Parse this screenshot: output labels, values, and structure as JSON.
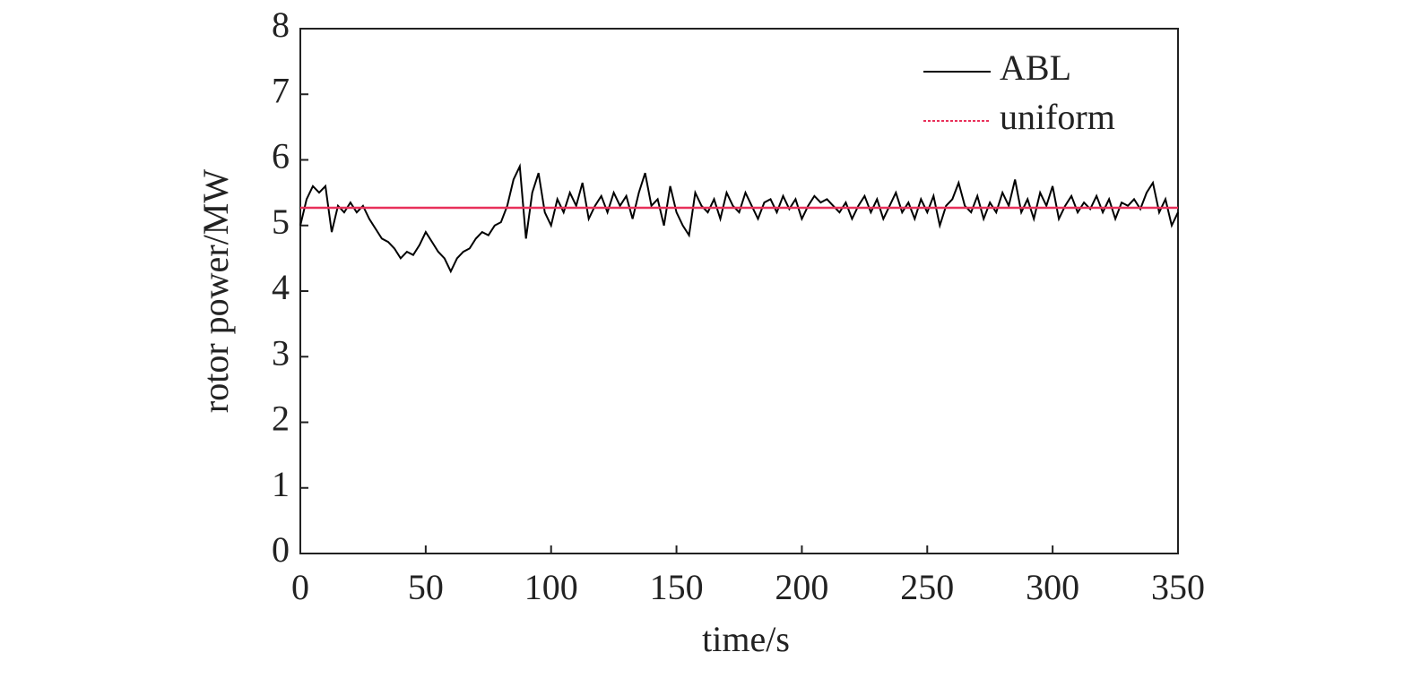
{
  "chart_data": {
    "type": "line",
    "xlabel": "time/s",
    "ylabel": "rotor power/MW",
    "xlim": [
      0,
      350
    ],
    "xticks": [
      0,
      50,
      100,
      150,
      200,
      250,
      300,
      350
    ],
    "ylim": [
      0,
      8
    ],
    "yticks": [
      0,
      1,
      2,
      3,
      4,
      5,
      6,
      7,
      8
    ],
    "legend": "upper right",
    "series": [
      {
        "name": "ABL",
        "color": "#000000",
        "x": [
          0,
          2.5,
          5,
          7.5,
          10,
          12.5,
          15,
          17.5,
          20,
          22.5,
          25,
          27.5,
          30,
          32.5,
          35,
          37.5,
          40,
          42.5,
          45,
          47.5,
          50,
          52.5,
          55,
          57.5,
          60,
          62.5,
          65,
          67.5,
          70,
          72.5,
          75,
          77.5,
          80,
          82.5,
          85,
          87.5,
          90,
          92.5,
          95,
          97.5,
          100,
          102.5,
          105,
          107.5,
          110,
          112.5,
          115,
          117.5,
          120,
          122.5,
          125,
          127.5,
          130,
          132.5,
          135,
          137.5,
          140,
          142.5,
          145,
          147.5,
          150,
          152.5,
          155,
          157.5,
          160,
          162.5,
          165,
          167.5,
          170,
          172.5,
          175,
          177.5,
          180,
          182.5,
          185,
          187.5,
          190,
          192.5,
          195,
          197.5,
          200,
          202.5,
          205,
          207.5,
          210,
          212.5,
          215,
          217.5,
          220,
          222.5,
          225,
          227.5,
          230,
          232.5,
          235,
          237.5,
          240,
          242.5,
          245,
          247.5,
          250,
          252.5,
          255,
          257.5,
          260,
          262.5,
          265,
          267.5,
          270,
          272.5,
          275,
          277.5,
          280,
          282.5,
          285,
          287.5,
          290,
          292.5,
          295,
          297.5,
          300,
          302.5,
          305,
          307.5,
          310,
          312.5,
          315,
          317.5,
          320,
          322.5,
          325,
          327.5,
          330,
          332.5,
          335,
          337.5,
          340,
          342.5,
          345,
          347.5,
          350
        ],
        "values": [
          5.0,
          5.4,
          5.6,
          5.5,
          5.6,
          4.9,
          5.3,
          5.2,
          5.35,
          5.2,
          5.3,
          5.1,
          4.95,
          4.8,
          4.75,
          4.65,
          4.5,
          4.6,
          4.55,
          4.7,
          4.9,
          4.75,
          4.6,
          4.5,
          4.3,
          4.5,
          4.6,
          4.65,
          4.8,
          4.9,
          4.85,
          5.0,
          5.05,
          5.3,
          5.7,
          5.9,
          4.8,
          5.5,
          5.8,
          5.2,
          5.0,
          5.4,
          5.2,
          5.5,
          5.3,
          5.65,
          5.1,
          5.3,
          5.45,
          5.2,
          5.5,
          5.3,
          5.45,
          5.1,
          5.5,
          5.8,
          5.3,
          5.4,
          5.0,
          5.6,
          5.2,
          5.0,
          4.85,
          5.5,
          5.3,
          5.2,
          5.4,
          5.1,
          5.5,
          5.3,
          5.2,
          5.5,
          5.3,
          5.1,
          5.35,
          5.4,
          5.2,
          5.45,
          5.25,
          5.4,
          5.1,
          5.3,
          5.45,
          5.35,
          5.4,
          5.3,
          5.2,
          5.35,
          5.1,
          5.3,
          5.45,
          5.2,
          5.4,
          5.1,
          5.3,
          5.5,
          5.2,
          5.35,
          5.1,
          5.4,
          5.2,
          5.45,
          5.0,
          5.3,
          5.4,
          5.65,
          5.3,
          5.2,
          5.45,
          5.1,
          5.35,
          5.2,
          5.5,
          5.3,
          5.7,
          5.2,
          5.4,
          5.1,
          5.5,
          5.3,
          5.6,
          5.1,
          5.3,
          5.45,
          5.2,
          5.35,
          5.25,
          5.45,
          5.2,
          5.4,
          5.1,
          5.35,
          5.3,
          5.4,
          5.25,
          5.5,
          5.65,
          5.2,
          5.4,
          5.0,
          5.2
        ]
      },
      {
        "name": "uniform",
        "color": "#e8305a",
        "x": [
          0,
          350
        ],
        "values": [
          5.27,
          5.27
        ]
      }
    ]
  }
}
